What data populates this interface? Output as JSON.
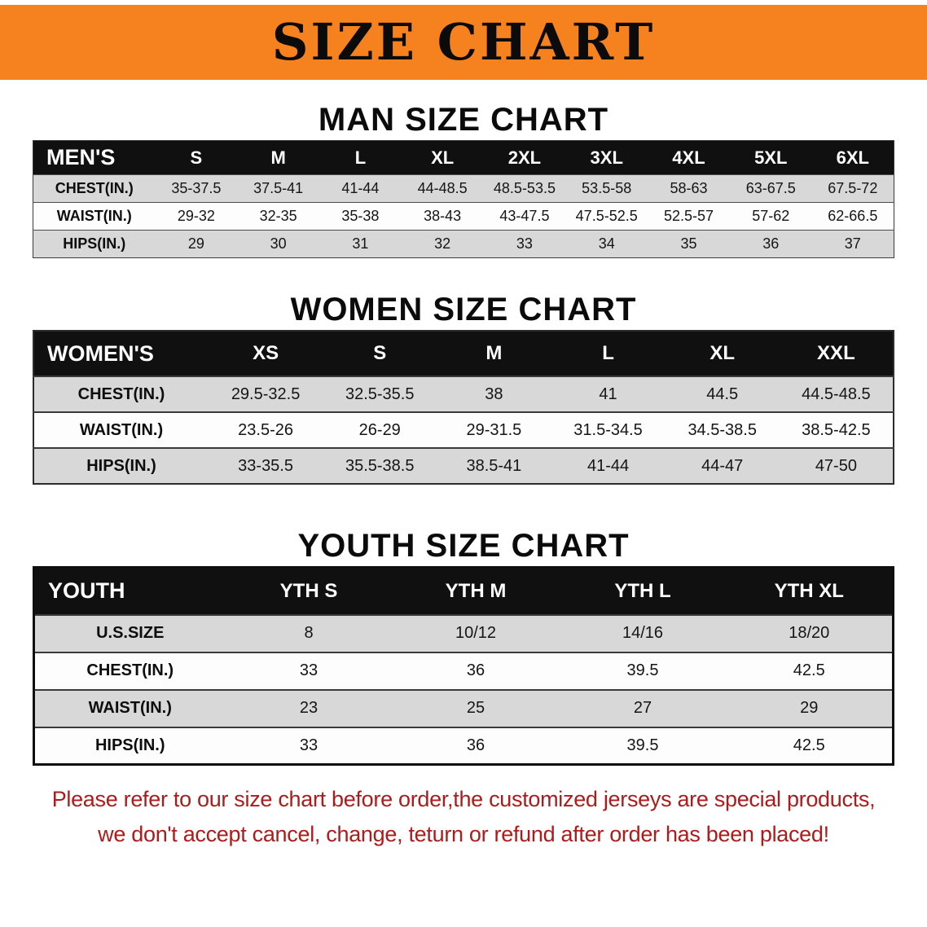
{
  "banner": {
    "title": "SIZE CHART"
  },
  "colors": {
    "banner_bg": "#F6821F",
    "table_header_bg": "#101010",
    "stripe_gray": "#D8D8D8",
    "footer_text": "#B01A1A"
  },
  "sections": [
    {
      "heading": "MAN SIZE CHART",
      "table": {
        "header_label": "MEN'S",
        "columns": [
          "S",
          "M",
          "L",
          "XL",
          "2XL",
          "3XL",
          "4XL",
          "5XL",
          "6XL"
        ],
        "rows": [
          {
            "label": "CHEST(IN.)",
            "values": [
              "35-37.5",
              "37.5-41",
              "41-44",
              "44-48.5",
              "48.5-53.5",
              "53.5-58",
              "58-63",
              "63-67.5",
              "67.5-72"
            ]
          },
          {
            "label": "WAIST(IN.)",
            "values": [
              "29-32",
              "32-35",
              "35-38",
              "38-43",
              "43-47.5",
              "47.5-52.5",
              "52.5-57",
              "57-62",
              "62-66.5"
            ]
          },
          {
            "label": "HIPS(IN.)",
            "values": [
              "29",
              "30",
              "31",
              "32",
              "33",
              "34",
              "35",
              "36",
              "37"
            ]
          }
        ]
      }
    },
    {
      "heading": "WOMEN SIZE CHART",
      "table": {
        "header_label": "WOMEN'S",
        "columns": [
          "XS",
          "S",
          "M",
          "L",
          "XL",
          "XXL"
        ],
        "rows": [
          {
            "label": "CHEST(IN.)",
            "values": [
              "29.5-32.5",
              "32.5-35.5",
              "38",
              "41",
              "44.5",
              "44.5-48.5"
            ]
          },
          {
            "label": "WAIST(IN.)",
            "values": [
              "23.5-26",
              "26-29",
              "29-31.5",
              "31.5-34.5",
              "34.5-38.5",
              "38.5-42.5"
            ]
          },
          {
            "label": "HIPS(IN.)",
            "values": [
              "33-35.5",
              "35.5-38.5",
              "38.5-41",
              "41-44",
              "44-47",
              "47-50"
            ]
          }
        ]
      }
    },
    {
      "heading": "YOUTH SIZE CHART",
      "table": {
        "header_label": "YOUTH",
        "columns": [
          "YTH S",
          "YTH M",
          "YTH L",
          "YTH XL"
        ],
        "rows": [
          {
            "label": "U.S.SIZE",
            "values": [
              "8",
              "10/12",
              "14/16",
              "18/20"
            ]
          },
          {
            "label": "CHEST(IN.)",
            "values": [
              "33",
              "36",
              "39.5",
              "42.5"
            ]
          },
          {
            "label": "WAIST(IN.)",
            "values": [
              "23",
              "25",
              "27",
              "29"
            ]
          },
          {
            "label": "HIPS(IN.)",
            "values": [
              "33",
              "36",
              "39.5",
              "42.5"
            ]
          }
        ]
      }
    }
  ],
  "footer": {
    "line1": "Please refer to our size chart before order,the customized jerseys are special products,",
    "line2": "we don't accept cancel, change, teturn or refund after order has been placed!"
  }
}
